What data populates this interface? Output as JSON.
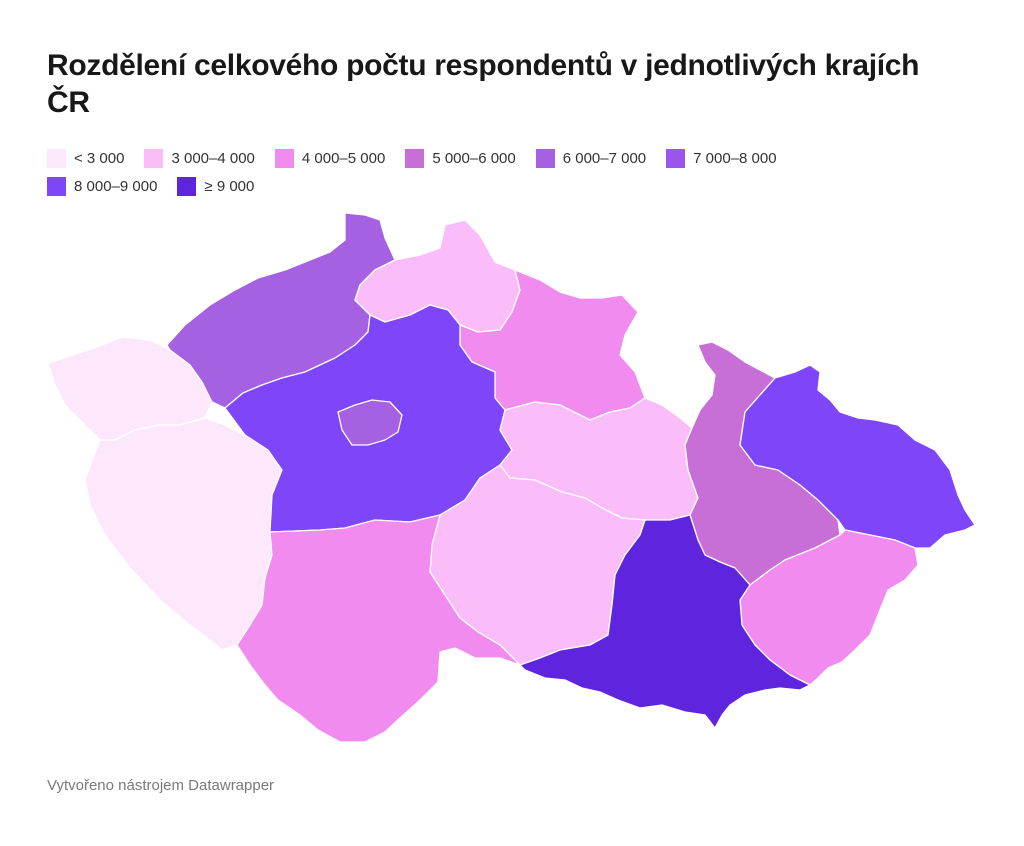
{
  "title": "Rozdělení celkového počtu respondentů v jednotlivých krajích ČR",
  "legend": [
    {
      "label": "< 3 000",
      "color": "#fde8fb"
    },
    {
      "label": "3 000–4 000",
      "color": "#fbbdf9"
    },
    {
      "label": "4 000–5 000",
      "color": "#f28bf0"
    },
    {
      "label": "5 000–6 000",
      "color": "#c76ed7"
    },
    {
      "label": "6 000–7 000",
      "color": "#a561e2"
    },
    {
      "label": "7 000–8 000",
      "color": "#9b55ed"
    },
    {
      "label": "8 000–9 000",
      "color": "#7f45f8"
    },
    {
      "label": "≥ 9 000",
      "color": "#5f24de"
    }
  ],
  "regions": [
    {
      "id": "karlovarsky",
      "fill": "#fde8fb"
    },
    {
      "id": "plzensky",
      "fill": "#fde8fb"
    },
    {
      "id": "ustecky",
      "fill": "#a561e2"
    },
    {
      "id": "liberecky",
      "fill": "#fbbdf9"
    },
    {
      "id": "kralovehradecky",
      "fill": "#f28bf0"
    },
    {
      "id": "stredocesky",
      "fill": "#7f45f8"
    },
    {
      "id": "praha",
      "fill": "#a561e2"
    },
    {
      "id": "pardubicky",
      "fill": "#fbbdf9"
    },
    {
      "id": "vysocina",
      "fill": "#fbbdf9"
    },
    {
      "id": "jihocesky",
      "fill": "#f28bf0"
    },
    {
      "id": "olomoucky",
      "fill": "#c76ed7"
    },
    {
      "id": "moravskoslezsky",
      "fill": "#7f45f8"
    },
    {
      "id": "zlinsky",
      "fill": "#f28bf0"
    },
    {
      "id": "jihomoravsky",
      "fill": "#5f24de"
    }
  ],
  "footer": "Vytvořeno nástrojem Datawrapper"
}
